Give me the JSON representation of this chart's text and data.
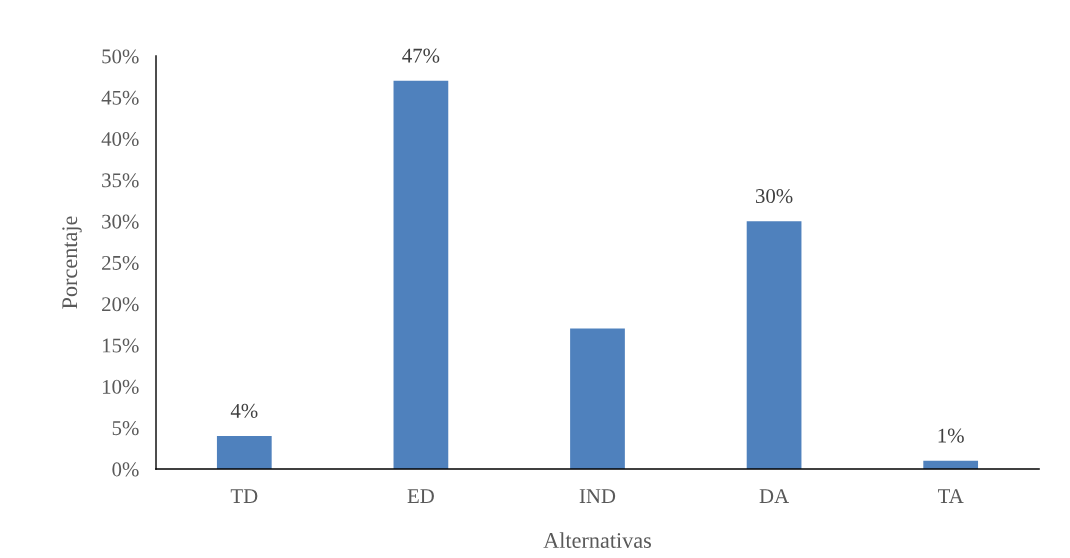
{
  "chart_data": {
    "type": "bar",
    "xlabel": "Alternativas",
    "ylabel": "Porcentaje",
    "categories": [
      "TD",
      "ED",
      "IND",
      "DA",
      "TA"
    ],
    "values": [
      4,
      47,
      17,
      30,
      1
    ],
    "color": "#4f81bd",
    "value_labels": [
      "4%",
      "47%",
      null,
      "30%",
      "1%"
    ],
    "ylim": [
      0,
      50
    ],
    "yticks": [
      {
        "value": 0,
        "label": "0%"
      },
      {
        "value": 5,
        "label": "5%"
      },
      {
        "value": 10,
        "label": "10%"
      },
      {
        "value": 15,
        "label": "15%"
      },
      {
        "value": 20,
        "label": "20%"
      },
      {
        "value": 25,
        "label": "25%"
      },
      {
        "value": 30,
        "label": "30%"
      },
      {
        "value": 35,
        "label": "35%"
      },
      {
        "value": 40,
        "label": "40%"
      },
      {
        "value": 45,
        "label": "45%"
      },
      {
        "value": 50,
        "label": "50%"
      }
    ],
    "grid": false,
    "legend": false
  }
}
